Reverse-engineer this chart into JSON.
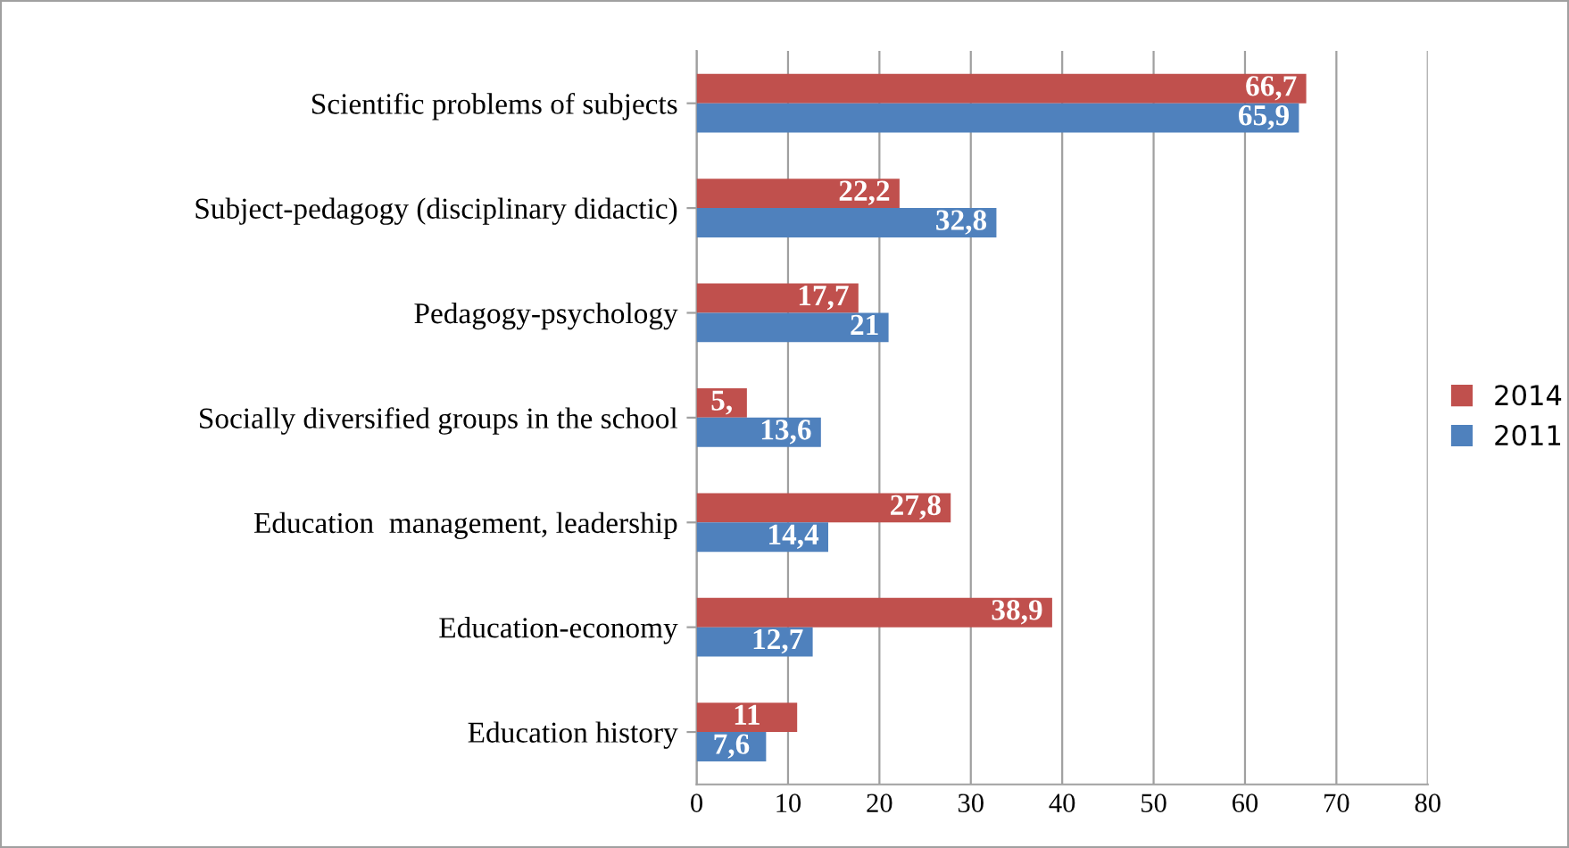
{
  "chart_data": {
    "type": "bar",
    "orientation": "horizontal",
    "categories": [
      "Scientific problems of subjects",
      "Subject-pedagogy (disciplinary didactic)",
      "Pedagogy-psychology",
      "Socially diversified groups in the school",
      "Education  management, leadership",
      "Education-economy",
      "Education history"
    ],
    "series": [
      {
        "name": "2014",
        "color": "#c0504d",
        "values": [
          66.7,
          22.2,
          17.7,
          5.5,
          27.8,
          38.9,
          11
        ],
        "value_labels": [
          "66,7",
          "22,2",
          "17,7",
          "5,",
          "27,8",
          "38,9",
          "11"
        ]
      },
      {
        "name": "2011",
        "color": "#4f81bd",
        "values": [
          65.9,
          32.8,
          21,
          13.6,
          14.4,
          12.7,
          7.6
        ],
        "value_labels": [
          "65,9",
          "32,8",
          "21",
          "13,6",
          "14,4",
          "12,7",
          "7,6"
        ]
      }
    ],
    "xlim": [
      0,
      80
    ],
    "xticks": [
      0,
      10,
      20,
      30,
      40,
      50,
      60,
      70,
      80
    ],
    "grid": "x",
    "legend": "right"
  }
}
